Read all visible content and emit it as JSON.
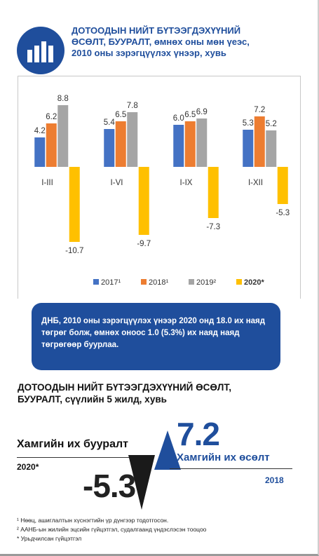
{
  "header": {
    "title_line1": "ДОТООДЫН НИЙТ БҮТЭЭГДЭХҮҮНИЙ",
    "title_line2": "ӨСӨЛТ, БУУРАЛТ, өмнөх оны мөн үеэс,",
    "title_line3": "2010 оны зэрэгцүүлэх үнээр, хувь",
    "icon": "bar-chart-icon"
  },
  "chart_data": {
    "type": "bar",
    "categories": [
      "I-III",
      "I-VI",
      "I-IX",
      "I-XII"
    ],
    "series": [
      {
        "name": "2017",
        "marker": "¹",
        "color": "#4472c4",
        "values": [
          4.2,
          5.4,
          6.0,
          5.3
        ],
        "labels": [
          "4.2",
          "5.4",
          "6.0",
          "5.3"
        ]
      },
      {
        "name": "2018",
        "marker": "¹",
        "color": "#ed7d31",
        "values": [
          6.2,
          6.5,
          6.5,
          7.2
        ],
        "labels": [
          "6.2",
          "6.5",
          "6.5",
          "7.2"
        ]
      },
      {
        "name": "2019",
        "marker": "²",
        "color": "#a5a5a5",
        "values": [
          8.8,
          7.8,
          6.9,
          5.2
        ],
        "labels": [
          "8.8",
          "7.8",
          "6.9",
          "5.2"
        ]
      },
      {
        "name": "2020",
        "marker": "*",
        "color": "#ffc000",
        "values": [
          -10.7,
          -9.7,
          -7.3,
          -5.3
        ],
        "labels": [
          "-10.7",
          "-9.7",
          "-7.3",
          "-5.3"
        ]
      }
    ],
    "legend_position": "bottom",
    "grid": false
  },
  "callout": {
    "text": "ДНБ, 2010 оны зэрэгцүүлэх үнээр 2020 онд 18.0 их наяд төгрөг болж, өмнөх оноос 1.0 (5.3%) их наяд наяд төгрөгөөр буурлаа."
  },
  "summary": {
    "title_line1": "ДОТООДЫН НИЙТ БҮТЭЭГДЭХҮҮНИЙ ӨСӨЛТ,",
    "title_line2": "БУУРАЛТ, сүүлийн 5 жилд, хувь",
    "max_decline_label": "Хамгийн их бууралт",
    "max_decline_year": "2020*",
    "max_decline_value": "-5.3",
    "max_growth_value": "7.2",
    "max_growth_label": "Хамгийн их өсөлт",
    "max_growth_year": "2018",
    "down_color": "#1a1a1a",
    "up_color": "#1f4e9c"
  },
  "footnotes": [
    "¹ Нөөц, ашиглалтын хүснэгтийн үр дүнгээр тодотгосон.",
    "² ААНБ-ын жилийн эцсийн гүйцэтгэл, судалгаанд үндэслэсэн тооцоо",
    "* Урьдчилсан гүйцэтгэл"
  ]
}
